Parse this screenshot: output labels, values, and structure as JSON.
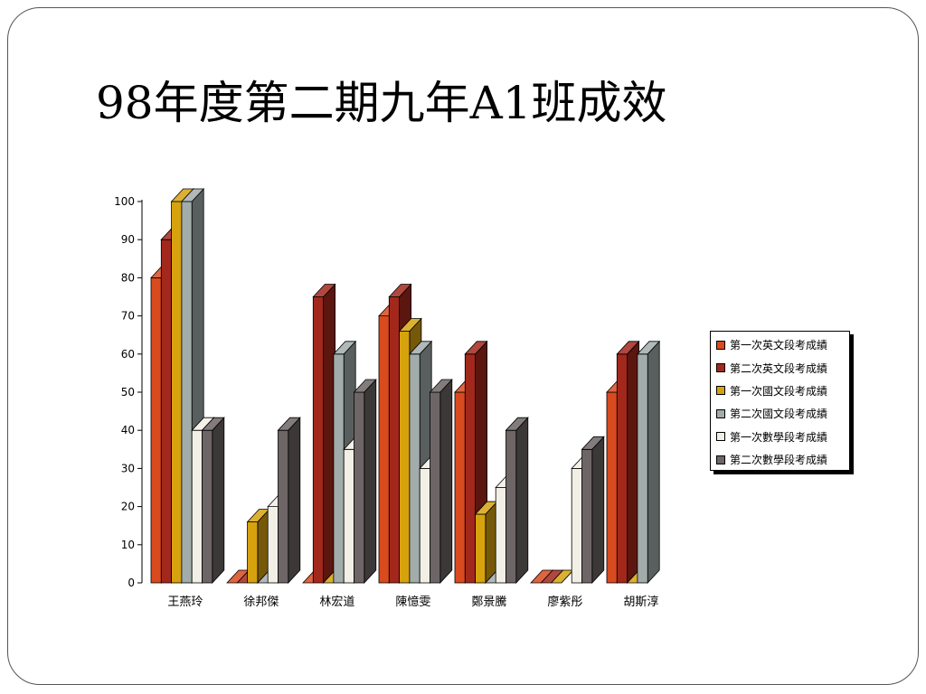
{
  "slide": {
    "title": "98年度第二期九年A1班成效"
  },
  "chart_data": {
    "type": "bar",
    "style": "3d-clustered-column",
    "title": "",
    "xlabel": "",
    "ylabel": "",
    "ylim": [
      0,
      100
    ],
    "yticks": [
      0,
      10,
      20,
      30,
      40,
      50,
      60,
      70,
      80,
      90,
      100
    ],
    "grid": false,
    "legend_position": "right",
    "categories": [
      "王燕玲",
      "徐邦傑",
      "林宏道",
      "陳憶雯",
      "鄭景騰",
      "廖紫彤",
      "胡斯淳"
    ],
    "series": [
      {
        "name": "第一次英文段考成績",
        "color": "#d94a1e",
        "values": [
          80,
          0,
          0,
          70,
          50,
          0,
          50
        ]
      },
      {
        "name": "第二次英文段考成績",
        "color": "#a3281c",
        "values": [
          90,
          0,
          75,
          75,
          60,
          0,
          60
        ]
      },
      {
        "name": "第一次國文段考成績",
        "color": "#d6a20e",
        "values": [
          100,
          16,
          0,
          66,
          18,
          0,
          0
        ]
      },
      {
        "name": "第二次國文段考成績",
        "color": "#a2acab",
        "values": [
          100,
          0,
          60,
          60,
          0,
          null,
          60
        ]
      },
      {
        "name": "第一次數學段考成績",
        "color": "#f2efe6",
        "values": [
          40,
          20,
          35,
          30,
          25,
          30,
          null
        ]
      },
      {
        "name": "第二次數學段考成績",
        "color": "#6d6566",
        "values": [
          40,
          40,
          50,
          50,
          40,
          35,
          null
        ]
      }
    ]
  }
}
